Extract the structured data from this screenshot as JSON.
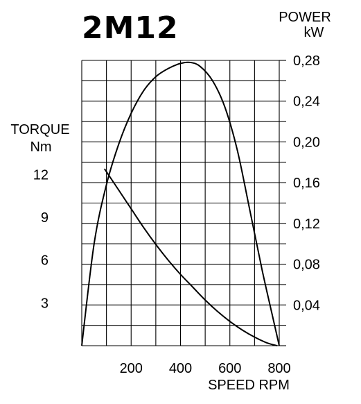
{
  "chart_data": {
    "type": "line",
    "title": "2M12",
    "xlabel": "SPEED RPM",
    "xlim": [
      0,
      800
    ],
    "x_ticks": [
      200,
      400,
      600,
      800
    ],
    "x_tick_labels": [
      "200",
      "400",
      "600",
      "800"
    ],
    "left_axis": {
      "label_line1": "TORQUE",
      "label_line2": "Nm",
      "ylim": [
        0,
        20
      ],
      "ticks": [
        3,
        6,
        9,
        12
      ],
      "tick_labels": [
        "3",
        "6",
        "9",
        "12"
      ]
    },
    "right_axis": {
      "label_line1": "POWER",
      "label_line2": "kW",
      "ylim": [
        0,
        0.28
      ],
      "ticks": [
        0.04,
        0.08,
        0.12,
        0.16,
        0.2,
        0.24,
        0.28
      ],
      "tick_labels": [
        "0,04",
        "0,08",
        "0,12",
        "0,16",
        "0,20",
        "0,24",
        "0,28"
      ]
    },
    "grid": true,
    "series": [
      {
        "axis": "left",
        "points": [
          [
            92,
            12.4
          ],
          [
            150,
            10.9
          ],
          [
            200,
            9.6
          ],
          [
            250,
            8.3
          ],
          [
            300,
            7.1
          ],
          [
            350,
            6.0
          ],
          [
            400,
            5.0
          ],
          [
            450,
            4.1
          ],
          [
            500,
            3.2
          ],
          [
            550,
            2.4
          ],
          [
            600,
            1.7
          ],
          [
            650,
            1.1
          ],
          [
            700,
            0.6
          ],
          [
            750,
            0.2
          ],
          [
            792,
            0.0
          ]
        ]
      },
      {
        "axis": "right",
        "points": [
          [
            0,
            0.0
          ],
          [
            50,
            0.1
          ],
          [
            100,
            0.158
          ],
          [
            150,
            0.198
          ],
          [
            200,
            0.228
          ],
          [
            250,
            0.25
          ],
          [
            300,
            0.264
          ],
          [
            350,
            0.272
          ],
          [
            400,
            0.277
          ],
          [
            440,
            0.278
          ],
          [
            480,
            0.274
          ],
          [
            530,
            0.26
          ],
          [
            580,
            0.234
          ],
          [
            630,
            0.192
          ],
          [
            680,
            0.134
          ],
          [
            730,
            0.075
          ],
          [
            770,
            0.032
          ],
          [
            800,
            0.0
          ]
        ]
      }
    ]
  },
  "colors": {
    "line": "#000000",
    "grid": "#000000",
    "background": "#ffffff"
  }
}
